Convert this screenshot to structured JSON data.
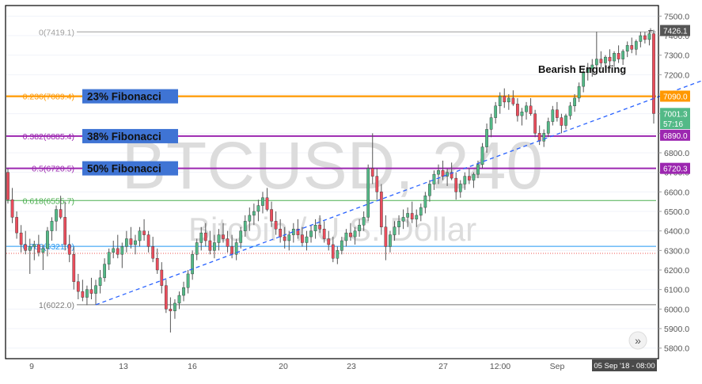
{
  "watermark": {
    "symbol": "BTCUSD, 240",
    "description": "Bitcoin / U.S. Dollar"
  },
  "colors": {
    "up": "#53b987",
    "down": "#eb4d5c",
    "wick": "#555555",
    "fib_0": "#9e9e9e",
    "fib_236": "#ff9800",
    "fib_382": "#9c27b0",
    "fib_500": "#9c27b0",
    "fib_618": "#4caf50",
    "fib_786": "#2196f3",
    "fib_1": "#787878",
    "label_bg": "#3f74d4",
    "trend": "#2962ff",
    "current_price_bg": "#ef5350"
  },
  "chart_data": {
    "type": "candlestick",
    "title": "BTCUSD, 240",
    "subtitle": "Bitcoin / U.S. Dollar",
    "x_ticks": [
      "9",
      "13",
      "16",
      "20",
      "23",
      "27",
      "12:00",
      "Sep"
    ],
    "time_label": "05 Sep '18 - 08:00",
    "ylim": [
      5750,
      7550
    ],
    "y_ticks": [
      "7500.0",
      "7400.0",
      "7300.0",
      "7200.0",
      "7100.0",
      "7000.0",
      "6900.0",
      "6800.0",
      "6700.0",
      "6600.0",
      "6500.0",
      "6400.0",
      "6300.0",
      "6200.0",
      "6100.0",
      "6000.0",
      "5900.0",
      "5800.0"
    ],
    "price_labels": [
      {
        "value": 7426.1,
        "text": "7426.1",
        "color": "#555555"
      },
      {
        "value": 7090.0,
        "text": "7090.0",
        "color": "#ff9800"
      },
      {
        "value": 7001.3,
        "text": "7001.3",
        "color": "#53b987"
      },
      {
        "value": 6950.0,
        "text": "57:16",
        "color": "#53b987"
      },
      {
        "value": 6890.0,
        "text": "6890.0",
        "color": "#9c27b0"
      },
      {
        "value": 6720.3,
        "text": "6720.3",
        "color": "#9c27b0"
      }
    ],
    "fib_levels": [
      {
        "ratio": "0",
        "value": 7419.1,
        "text": "0(7419.1)",
        "color": "#9e9e9e"
      },
      {
        "ratio": "0.236",
        "value": 7089.4,
        "text": "0.236(7089.4)",
        "color": "#ff9800"
      },
      {
        "ratio": "0.382",
        "value": 6885.4,
        "text": "0.382(6885.4)",
        "color": "#9c27b0"
      },
      {
        "ratio": "0.5",
        "value": 6720.5,
        "text": "0.5(6720.5)",
        "color": "#9c27b0"
      },
      {
        "ratio": "0.618",
        "value": 6555.7,
        "text": "0.618(6555.7)",
        "color": "#4caf50"
      },
      {
        "ratio": "0.786",
        "value": 6321.0,
        "text": "0.786(6321.0)",
        "color": "#2196f3"
      },
      {
        "ratio": "1",
        "value": 6022.0,
        "text": "1(6022.0)",
        "color": "#787878"
      }
    ],
    "fib_callouts": [
      {
        "text": "23% Fibonacci",
        "value": 7089.4
      },
      {
        "text": "38% Fibonacci",
        "value": 6885.4
      },
      {
        "text": "50% Fibonacci",
        "value": 6720.5
      }
    ],
    "annotation": {
      "text": "Bearish Engulfing",
      "value": 7230
    },
    "trendline": {
      "from": {
        "i": 20,
        "value": 6022
      },
      "to": {
        "i": 188,
        "value": 7419
      }
    },
    "ohlc": [
      [
        6700,
        6720,
        6540,
        6560
      ],
      [
        6560,
        6620,
        6440,
        6470
      ],
      [
        6470,
        6500,
        6360,
        6390
      ],
      [
        6390,
        6430,
        6290,
        6330
      ],
      [
        6330,
        6400,
        6280,
        6300
      ],
      [
        6300,
        6360,
        6180,
        6320
      ],
      [
        6320,
        6350,
        6250,
        6330
      ],
      [
        6330,
        6380,
        6270,
        6290
      ],
      [
        6290,
        6330,
        6200,
        6310
      ],
      [
        6310,
        6420,
        6270,
        6400
      ],
      [
        6400,
        6470,
        6350,
        6450
      ],
      [
        6450,
        6530,
        6400,
        6510
      ],
      [
        6510,
        6580,
        6460,
        6470
      ],
      [
        6470,
        6550,
        6300,
        6330
      ],
      [
        6330,
        6380,
        6240,
        6280
      ],
      [
        6280,
        6320,
        6100,
        6140
      ],
      [
        6140,
        6180,
        6050,
        6090
      ],
      [
        6090,
        6150,
        6040,
        6060
      ],
      [
        6060,
        6120,
        6020,
        6100
      ],
      [
        6100,
        6160,
        6050,
        6080
      ],
      [
        6080,
        6150,
        6022,
        6120
      ],
      [
        6120,
        6200,
        6080,
        6160
      ],
      [
        6160,
        6260,
        6140,
        6230
      ],
      [
        6230,
        6310,
        6200,
        6290
      ],
      [
        6290,
        6350,
        6260,
        6310
      ],
      [
        6310,
        6380,
        6260,
        6280
      ],
      [
        6280,
        6340,
        6210,
        6320
      ],
      [
        6320,
        6400,
        6290,
        6360
      ],
      [
        6360,
        6420,
        6310,
        6330
      ],
      [
        6330,
        6380,
        6280,
        6350
      ],
      [
        6350,
        6420,
        6320,
        6400
      ],
      [
        6400,
        6460,
        6350,
        6380
      ],
      [
        6380,
        6400,
        6290,
        6320
      ],
      [
        6320,
        6370,
        6240,
        6260
      ],
      [
        6260,
        6310,
        6180,
        6200
      ],
      [
        6200,
        6240,
        6080,
        6120
      ],
      [
        6120,
        6150,
        5980,
        6000
      ],
      [
        6000,
        6060,
        5880,
        5990
      ],
      [
        5990,
        6050,
        5950,
        6030
      ],
      [
        6030,
        6090,
        6000,
        6070
      ],
      [
        6070,
        6140,
        6040,
        6110
      ],
      [
        6110,
        6200,
        6080,
        6180
      ],
      [
        6180,
        6300,
        6150,
        6280
      ],
      [
        6280,
        6360,
        6250,
        6340
      ],
      [
        6340,
        6420,
        6300,
        6390
      ],
      [
        6390,
        6440,
        6320,
        6350
      ],
      [
        6350,
        6400,
        6280,
        6300
      ],
      [
        6300,
        6380,
        6260,
        6340
      ],
      [
        6340,
        6410,
        6300,
        6380
      ],
      [
        6380,
        6440,
        6340,
        6360
      ],
      [
        6360,
        6400,
        6290,
        6320
      ],
      [
        6320,
        6380,
        6260,
        6280
      ],
      [
        6280,
        6360,
        6250,
        6340
      ],
      [
        6340,
        6420,
        6310,
        6400
      ],
      [
        6400,
        6480,
        6370,
        6450
      ],
      [
        6450,
        6520,
        6400,
        6480
      ],
      [
        6480,
        6540,
        6430,
        6500
      ],
      [
        6500,
        6560,
        6450,
        6530
      ],
      [
        6530,
        6600,
        6490,
        6570
      ],
      [
        6570,
        6620,
        6500,
        6510
      ],
      [
        6510,
        6550,
        6420,
        6450
      ],
      [
        6450,
        6500,
        6380,
        6410
      ],
      [
        6410,
        6460,
        6340,
        6370
      ],
      [
        6370,
        6420,
        6310,
        6350
      ],
      [
        6350,
        6400,
        6300,
        6380
      ],
      [
        6380,
        6440,
        6340,
        6410
      ],
      [
        6410,
        6460,
        6360,
        6380
      ],
      [
        6380,
        6420,
        6320,
        6340
      ],
      [
        6340,
        6400,
        6300,
        6370
      ],
      [
        6370,
        6430,
        6340,
        6400
      ],
      [
        6400,
        6460,
        6360,
        6430
      ],
      [
        6430,
        6480,
        6390,
        6410
      ],
      [
        6410,
        6450,
        6340,
        6360
      ],
      [
        6360,
        6400,
        6300,
        6330
      ],
      [
        6330,
        6370,
        6240,
        6260
      ],
      [
        6260,
        6320,
        6230,
        6300
      ],
      [
        6300,
        6370,
        6280,
        6350
      ],
      [
        6350,
        6410,
        6320,
        6390
      ],
      [
        6390,
        6440,
        6350,
        6370
      ],
      [
        6370,
        6420,
        6330,
        6400
      ],
      [
        6400,
        6460,
        6370,
        6430
      ],
      [
        6430,
        6500,
        6400,
        6470
      ],
      [
        6470,
        6740,
        6450,
        6720
      ],
      [
        6720,
        6900,
        6640,
        6680
      ],
      [
        6680,
        6720,
        6560,
        6600
      ],
      [
        6600,
        6640,
        6380,
        6420
      ],
      [
        6420,
        6480,
        6250,
        6320
      ],
      [
        6320,
        6400,
        6290,
        6380
      ],
      [
        6380,
        6450,
        6350,
        6420
      ],
      [
        6420,
        6480,
        6380,
        6450
      ],
      [
        6450,
        6510,
        6410,
        6470
      ],
      [
        6470,
        6520,
        6420,
        6490
      ],
      [
        6490,
        6550,
        6440,
        6460
      ],
      [
        6460,
        6510,
        6420,
        6480
      ],
      [
        6480,
        6540,
        6450,
        6520
      ],
      [
        6520,
        6600,
        6490,
        6580
      ],
      [
        6580,
        6660,
        6550,
        6640
      ],
      [
        6640,
        6710,
        6610,
        6690
      ],
      [
        6690,
        6740,
        6640,
        6710
      ],
      [
        6710,
        6760,
        6660,
        6680
      ],
      [
        6680,
        6720,
        6630,
        6700
      ],
      [
        6700,
        6750,
        6660,
        6670
      ],
      [
        6670,
        6700,
        6560,
        6600
      ],
      [
        6600,
        6660,
        6570,
        6640
      ],
      [
        6640,
        6700,
        6610,
        6680
      ],
      [
        6680,
        6720,
        6640,
        6660
      ],
      [
        6660,
        6700,
        6620,
        6690
      ],
      [
        6690,
        6760,
        6670,
        6740
      ],
      [
        6740,
        6850,
        6720,
        6830
      ],
      [
        6830,
        6950,
        6800,
        6920
      ],
      [
        6920,
        7000,
        6880,
        6980
      ],
      [
        6980,
        7060,
        6950,
        7040
      ],
      [
        7040,
        7110,
        7000,
        7090
      ],
      [
        7090,
        7130,
        7030,
        7060
      ],
      [
        7060,
        7100,
        7020,
        7080
      ],
      [
        7080,
        7120,
        7040,
        7050
      ],
      [
        7050,
        7080,
        6960,
        6990
      ],
      [
        6990,
        7030,
        6940,
        7010
      ],
      [
        7010,
        7060,
        6970,
        7040
      ],
      [
        7040,
        7080,
        6990,
        7000
      ],
      [
        7000,
        7020,
        6880,
        6900
      ],
      [
        6900,
        6940,
        6840,
        6860
      ],
      [
        6860,
        6920,
        6830,
        6900
      ],
      [
        6900,
        6980,
        6880,
        6960
      ],
      [
        6960,
        7040,
        6940,
        7020
      ],
      [
        7020,
        7060,
        6960,
        6980
      ],
      [
        6980,
        7000,
        6900,
        6940
      ],
      [
        6940,
        7000,
        6920,
        6990
      ],
      [
        6990,
        7060,
        6970,
        7040
      ],
      [
        7040,
        7100,
        7010,
        7080
      ],
      [
        7080,
        7160,
        7060,
        7140
      ],
      [
        7140,
        7230,
        7110,
        7210
      ],
      [
        7210,
        7260,
        7170,
        7230
      ],
      [
        7230,
        7280,
        7190,
        7250
      ],
      [
        7250,
        7420,
        7220,
        7280
      ],
      [
        7280,
        7320,
        7230,
        7260
      ],
      [
        7260,
        7300,
        7220,
        7290
      ],
      [
        7290,
        7330,
        7250,
        7270
      ],
      [
        7270,
        7320,
        7240,
        7310
      ],
      [
        7310,
        7350,
        7260,
        7280
      ],
      [
        7280,
        7330,
        7250,
        7320
      ],
      [
        7320,
        7370,
        7290,
        7350
      ],
      [
        7350,
        7390,
        7310,
        7330
      ],
      [
        7330,
        7380,
        7300,
        7370
      ],
      [
        7370,
        7420,
        7340,
        7400
      ],
      [
        7400,
        7419,
        7360,
        7380
      ],
      [
        7380,
        7426,
        7350,
        7410
      ],
      [
        7410,
        7430,
        6950,
        7001
      ]
    ]
  }
}
